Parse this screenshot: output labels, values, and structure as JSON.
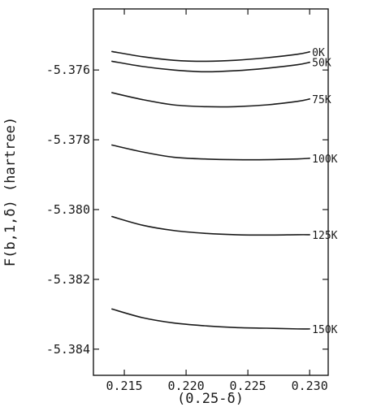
{
  "chart_data": {
    "type": "line",
    "title": "",
    "xlabel": "(0.25-δ)",
    "ylabel": "F(b,1,δ) (hartree)",
    "xlim": [
      0.2125,
      0.2315
    ],
    "ylim": [
      -5.38475,
      -5.37425
    ],
    "grid": false,
    "legend": "none",
    "x_ticks": [
      0.215,
      0.22,
      0.225,
      0.23
    ],
    "x_tick_labels": [
      "0.215",
      "0.220",
      "0.225",
      "0.230"
    ],
    "y_ticks": [
      -5.376,
      -5.378,
      -5.38,
      -5.382,
      -5.384
    ],
    "y_tick_labels": [
      "-5.376",
      "-5.378",
      "-5.380",
      "-5.382",
      "-5.384"
    ],
    "x": [
      0.214,
      0.2165,
      0.219,
      0.2215,
      0.224,
      0.2265,
      0.229,
      0.23
    ],
    "series": [
      {
        "name": "0K",
        "values": [
          -5.37547,
          -5.37562,
          -5.37572,
          -5.37575,
          -5.37572,
          -5.37565,
          -5.37555,
          -5.37548
        ]
      },
      {
        "name": "50K",
        "values": [
          -5.37575,
          -5.3759,
          -5.376,
          -5.37605,
          -5.37602,
          -5.37595,
          -5.37585,
          -5.37578
        ]
      },
      {
        "name": "75K",
        "values": [
          -5.37665,
          -5.37685,
          -5.377,
          -5.37705,
          -5.37705,
          -5.377,
          -5.3769,
          -5.37683
        ]
      },
      {
        "name": "100K",
        "values": [
          -5.37815,
          -5.37835,
          -5.3785,
          -5.37855,
          -5.37857,
          -5.37857,
          -5.37855,
          -5.37853
        ]
      },
      {
        "name": "125K",
        "values": [
          -5.3802,
          -5.38045,
          -5.3806,
          -5.38068,
          -5.38072,
          -5.38073,
          -5.38072,
          -5.38072
        ]
      },
      {
        "name": "150K",
        "values": [
          -5.38285,
          -5.3831,
          -5.38325,
          -5.38333,
          -5.38338,
          -5.3834,
          -5.38342,
          -5.38342
        ]
      }
    ]
  }
}
